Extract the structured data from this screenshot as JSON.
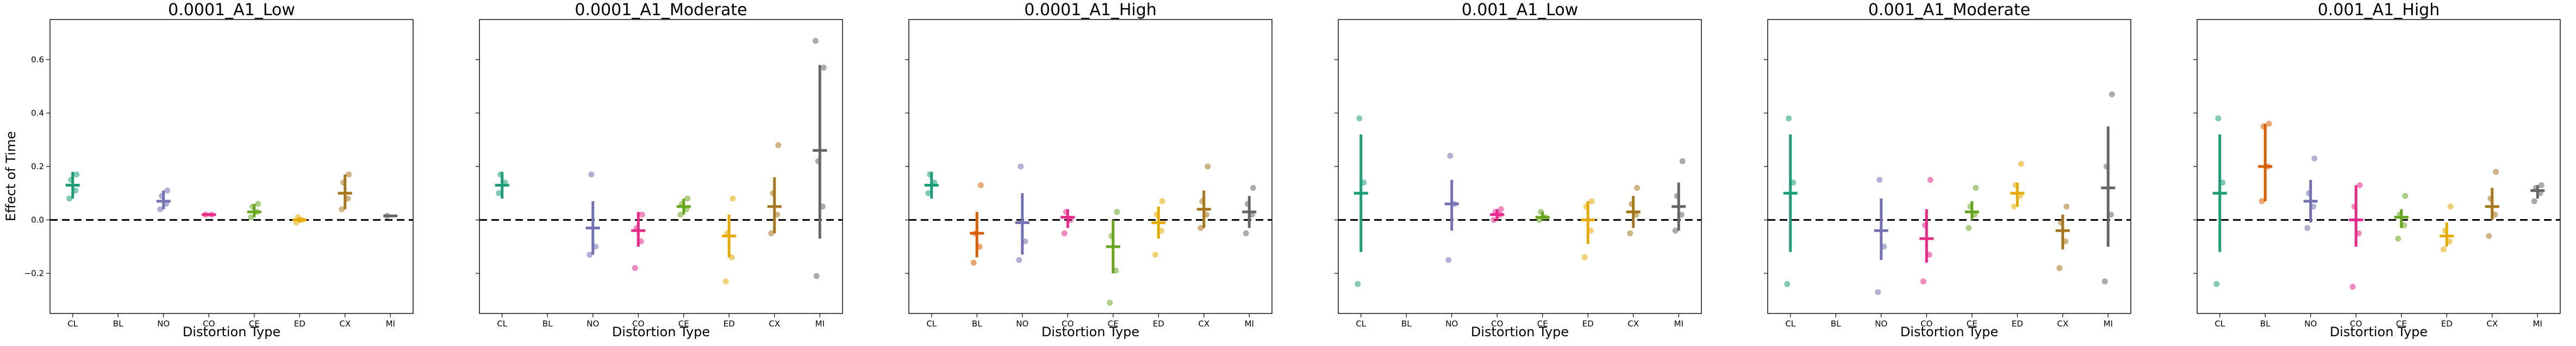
{
  "figure": {
    "ylabel": "Effect of Time",
    "yticks": [
      -0.2,
      0.0,
      0.2,
      0.4,
      0.6
    ],
    "ytick_labels": [
      "−0.2",
      "0.0",
      "0.2",
      "0.4",
      "0.6"
    ],
    "categories": [
      "CL",
      "BL",
      "NO",
      "CO",
      "CE",
      "ED",
      "CX",
      "MI"
    ],
    "colors": {
      "CL": "#1b9e77",
      "BL": "#d95f02",
      "NO": "#7570b3",
      "CO": "#e7298a",
      "CE": "#66a61e",
      "ED": "#e6ab02",
      "CX": "#a6761d",
      "MI": "#666666"
    }
  },
  "chart_data": [
    {
      "type": "scatter",
      "title": "0.0001_A1_Low",
      "xlabel": "Distortion Type",
      "ylabel": "Effect of Time",
      "ylim": [
        -0.35,
        0.75
      ],
      "categories": [
        "CL",
        "BL",
        "NO",
        "CO",
        "CE",
        "ED",
        "CX",
        "MI"
      ],
      "zero_line": 0,
      "series": [
        {
          "category": "CL",
          "mean": 0.13,
          "ci": [
            0.08,
            0.18
          ],
          "points": [
            0.08,
            0.11,
            0.15,
            0.17
          ]
        },
        {
          "category": "NO",
          "mean": 0.07,
          "ci": [
            0.04,
            0.11
          ],
          "points": [
            0.04,
            0.06,
            0.09,
            0.11
          ]
        },
        {
          "category": "CO",
          "mean": 0.02,
          "ci": [
            0.015,
            0.025
          ],
          "points": [
            0.02,
            0.02
          ]
        },
        {
          "category": "CE",
          "mean": 0.03,
          "ci": [
            0.01,
            0.06
          ],
          "points": [
            0.01,
            0.03,
            0.05,
            0.06
          ]
        },
        {
          "category": "ED",
          "mean": 0.0,
          "ci": [
            -0.01,
            0.01
          ],
          "points": [
            -0.01,
            0.0,
            0.01
          ]
        },
        {
          "category": "CX",
          "mean": 0.1,
          "ci": [
            0.04,
            0.17
          ],
          "points": [
            0.04,
            0.08,
            0.14,
            0.17
          ]
        },
        {
          "category": "MI",
          "mean": 0.015,
          "ci": [
            0.01,
            0.02
          ],
          "points": [
            0.015
          ]
        }
      ]
    },
    {
      "type": "scatter",
      "title": "0.0001_A1_Moderate",
      "xlabel": "Distortion Type",
      "ylabel": "",
      "ylim": [
        -0.35,
        0.75
      ],
      "categories": [
        "CL",
        "BL",
        "NO",
        "CO",
        "CE",
        "ED",
        "CX",
        "MI"
      ],
      "zero_line": 0,
      "series": [
        {
          "category": "CL",
          "mean": 0.13,
          "ci": [
            0.08,
            0.18
          ],
          "points": [
            0.1,
            0.14,
            0.17
          ]
        },
        {
          "category": "NO",
          "mean": -0.03,
          "ci": [
            -0.13,
            0.07
          ],
          "points": [
            -0.13,
            -0.1,
            0.17
          ]
        },
        {
          "category": "CO",
          "mean": -0.04,
          "ci": [
            -0.1,
            0.03
          ],
          "points": [
            -0.18,
            -0.08,
            -0.03,
            0.02
          ]
        },
        {
          "category": "CE",
          "mean": 0.05,
          "ci": [
            0.02,
            0.08
          ],
          "points": [
            0.02,
            0.04,
            0.06,
            0.08
          ]
        },
        {
          "category": "ED",
          "mean": -0.06,
          "ci": [
            -0.14,
            0.02
          ],
          "points": [
            -0.23,
            -0.14,
            -0.05,
            0.08
          ]
        },
        {
          "category": "CX",
          "mean": 0.05,
          "ci": [
            -0.05,
            0.16
          ],
          "points": [
            -0.05,
            0.02,
            0.1,
            0.28
          ]
        },
        {
          "category": "MI",
          "mean": 0.26,
          "ci": [
            -0.07,
            0.58
          ],
          "points": [
            -0.21,
            0.05,
            0.22,
            0.57,
            0.67
          ]
        }
      ]
    },
    {
      "type": "scatter",
      "title": "0.0001_A1_High",
      "xlabel": "Distortion Type",
      "ylabel": "",
      "ylim": [
        -0.35,
        0.75
      ],
      "categories": [
        "CL",
        "BL",
        "NO",
        "CO",
        "CE",
        "ED",
        "CX",
        "MI"
      ],
      "zero_line": 0,
      "series": [
        {
          "category": "CL",
          "mean": 0.13,
          "ci": [
            0.08,
            0.18
          ],
          "points": [
            0.1,
            0.14,
            0.17
          ]
        },
        {
          "category": "BL",
          "mean": -0.05,
          "ci": [
            -0.14,
            0.03
          ],
          "points": [
            -0.16,
            -0.1,
            -0.05,
            0.13
          ]
        },
        {
          "category": "NO",
          "mean": -0.01,
          "ci": [
            -0.13,
            0.1
          ],
          "points": [
            -0.15,
            -0.08,
            0.2
          ]
        },
        {
          "category": "CO",
          "mean": 0.01,
          "ci": [
            -0.03,
            0.04
          ],
          "points": [
            -0.05,
            0.0,
            0.03
          ]
        },
        {
          "category": "CE",
          "mean": -0.1,
          "ci": [
            -0.2,
            0.0
          ],
          "points": [
            -0.31,
            -0.19,
            -0.06,
            0.03
          ]
        },
        {
          "category": "ED",
          "mean": -0.01,
          "ci": [
            -0.07,
            0.05
          ],
          "points": [
            -0.13,
            -0.04,
            0.02,
            0.07
          ]
        },
        {
          "category": "CX",
          "mean": 0.04,
          "ci": [
            -0.03,
            0.11
          ],
          "points": [
            -0.03,
            0.02,
            0.07,
            0.2
          ]
        },
        {
          "category": "MI",
          "mean": 0.03,
          "ci": [
            -0.03,
            0.09
          ],
          "points": [
            -0.05,
            0.02,
            0.06,
            0.12
          ]
        }
      ]
    },
    {
      "type": "scatter",
      "title": "0.001_A1_Low",
      "xlabel": "Distortion Type",
      "ylabel": "",
      "ylim": [
        -0.35,
        0.75
      ],
      "categories": [
        "CL",
        "BL",
        "NO",
        "CO",
        "CE",
        "ED",
        "CX",
        "MI"
      ],
      "zero_line": 0,
      "series": [
        {
          "category": "CL",
          "mean": 0.1,
          "ci": [
            -0.12,
            0.32
          ],
          "points": [
            -0.24,
            0.14,
            0.38
          ]
        },
        {
          "category": "NO",
          "mean": 0.06,
          "ci": [
            -0.04,
            0.15
          ],
          "points": [
            -0.15,
            0.06,
            0.24
          ]
        },
        {
          "category": "CO",
          "mean": 0.02,
          "ci": [
            0.0,
            0.04
          ],
          "points": [
            0.0,
            0.02,
            0.03,
            0.04
          ]
        },
        {
          "category": "CE",
          "mean": 0.01,
          "ci": [
            0.0,
            0.03
          ],
          "points": [
            0.0,
            0.01,
            0.03
          ]
        },
        {
          "category": "ED",
          "mean": 0.0,
          "ci": [
            -0.09,
            0.07
          ],
          "points": [
            -0.14,
            -0.04,
            0.05,
            0.07
          ]
        },
        {
          "category": "CX",
          "mean": 0.03,
          "ci": [
            -0.03,
            0.09
          ],
          "points": [
            -0.05,
            0.02,
            0.06,
            0.12
          ]
        },
        {
          "category": "MI",
          "mean": 0.05,
          "ci": [
            -0.04,
            0.14
          ],
          "points": [
            -0.04,
            0.02,
            0.09,
            0.22
          ]
        }
      ]
    },
    {
      "type": "scatter",
      "title": "0.001_A1_Moderate",
      "xlabel": "Distortion Type",
      "ylabel": "",
      "ylim": [
        -0.35,
        0.75
      ],
      "categories": [
        "CL",
        "BL",
        "NO",
        "CO",
        "CE",
        "ED",
        "CX",
        "MI"
      ],
      "zero_line": 0,
      "series": [
        {
          "category": "CL",
          "mean": 0.1,
          "ci": [
            -0.12,
            0.32
          ],
          "points": [
            -0.24,
            0.14,
            0.38
          ]
        },
        {
          "category": "NO",
          "mean": -0.04,
          "ci": [
            -0.15,
            0.08
          ],
          "points": [
            -0.27,
            -0.1,
            0.15
          ]
        },
        {
          "category": "CO",
          "mean": -0.07,
          "ci": [
            -0.16,
            0.04
          ],
          "points": [
            -0.23,
            -0.13,
            -0.02,
            0.15
          ]
        },
        {
          "category": "CE",
          "mean": 0.03,
          "ci": [
            0.0,
            0.07
          ],
          "points": [
            -0.03,
            0.02,
            0.05,
            0.12
          ]
        },
        {
          "category": "ED",
          "mean": 0.1,
          "ci": [
            0.05,
            0.14
          ],
          "points": [
            0.05,
            0.09,
            0.13,
            0.21
          ]
        },
        {
          "category": "CX",
          "mean": -0.04,
          "ci": [
            -0.11,
            0.02
          ],
          "points": [
            -0.18,
            -0.08,
            -0.01,
            0.05
          ]
        },
        {
          "category": "MI",
          "mean": 0.12,
          "ci": [
            -0.1,
            0.35
          ],
          "points": [
            -0.23,
            0.02,
            0.2,
            0.47
          ]
        }
      ]
    },
    {
      "type": "scatter",
      "title": "0.001_A1_High",
      "xlabel": "Distortion Type",
      "ylabel": "",
      "ylim": [
        -0.35,
        0.75
      ],
      "categories": [
        "CL",
        "BL",
        "NO",
        "CO",
        "CE",
        "ED",
        "CX",
        "MI"
      ],
      "zero_line": 0,
      "series": [
        {
          "category": "CL",
          "mean": 0.1,
          "ci": [
            -0.12,
            0.32
          ],
          "points": [
            -0.24,
            0.14,
            0.38
          ]
        },
        {
          "category": "BL",
          "mean": 0.2,
          "ci": [
            0.07,
            0.36
          ],
          "points": [
            0.07,
            0.2,
            0.35,
            0.36
          ]
        },
        {
          "category": "NO",
          "mean": 0.07,
          "ci": [
            -0.01,
            0.15
          ],
          "points": [
            -0.03,
            0.05,
            0.1,
            0.23
          ]
        },
        {
          "category": "CO",
          "mean": 0.0,
          "ci": [
            -0.1,
            0.13
          ],
          "points": [
            -0.25,
            -0.05,
            0.05,
            0.13
          ]
        },
        {
          "category": "CE",
          "mean": 0.01,
          "ci": [
            -0.03,
            0.04
          ],
          "points": [
            -0.07,
            -0.02,
            0.02,
            0.09
          ]
        },
        {
          "category": "ED",
          "mean": -0.06,
          "ci": [
            -0.1,
            -0.01
          ],
          "points": [
            -0.11,
            -0.08,
            -0.04,
            0.05
          ]
        },
        {
          "category": "CX",
          "mean": 0.05,
          "ci": [
            0.0,
            0.12
          ],
          "points": [
            -0.06,
            0.02,
            0.08,
            0.18
          ]
        },
        {
          "category": "MI",
          "mean": 0.11,
          "ci": [
            0.08,
            0.13
          ],
          "points": [
            0.07,
            0.1,
            0.12,
            0.13
          ]
        }
      ]
    }
  ]
}
